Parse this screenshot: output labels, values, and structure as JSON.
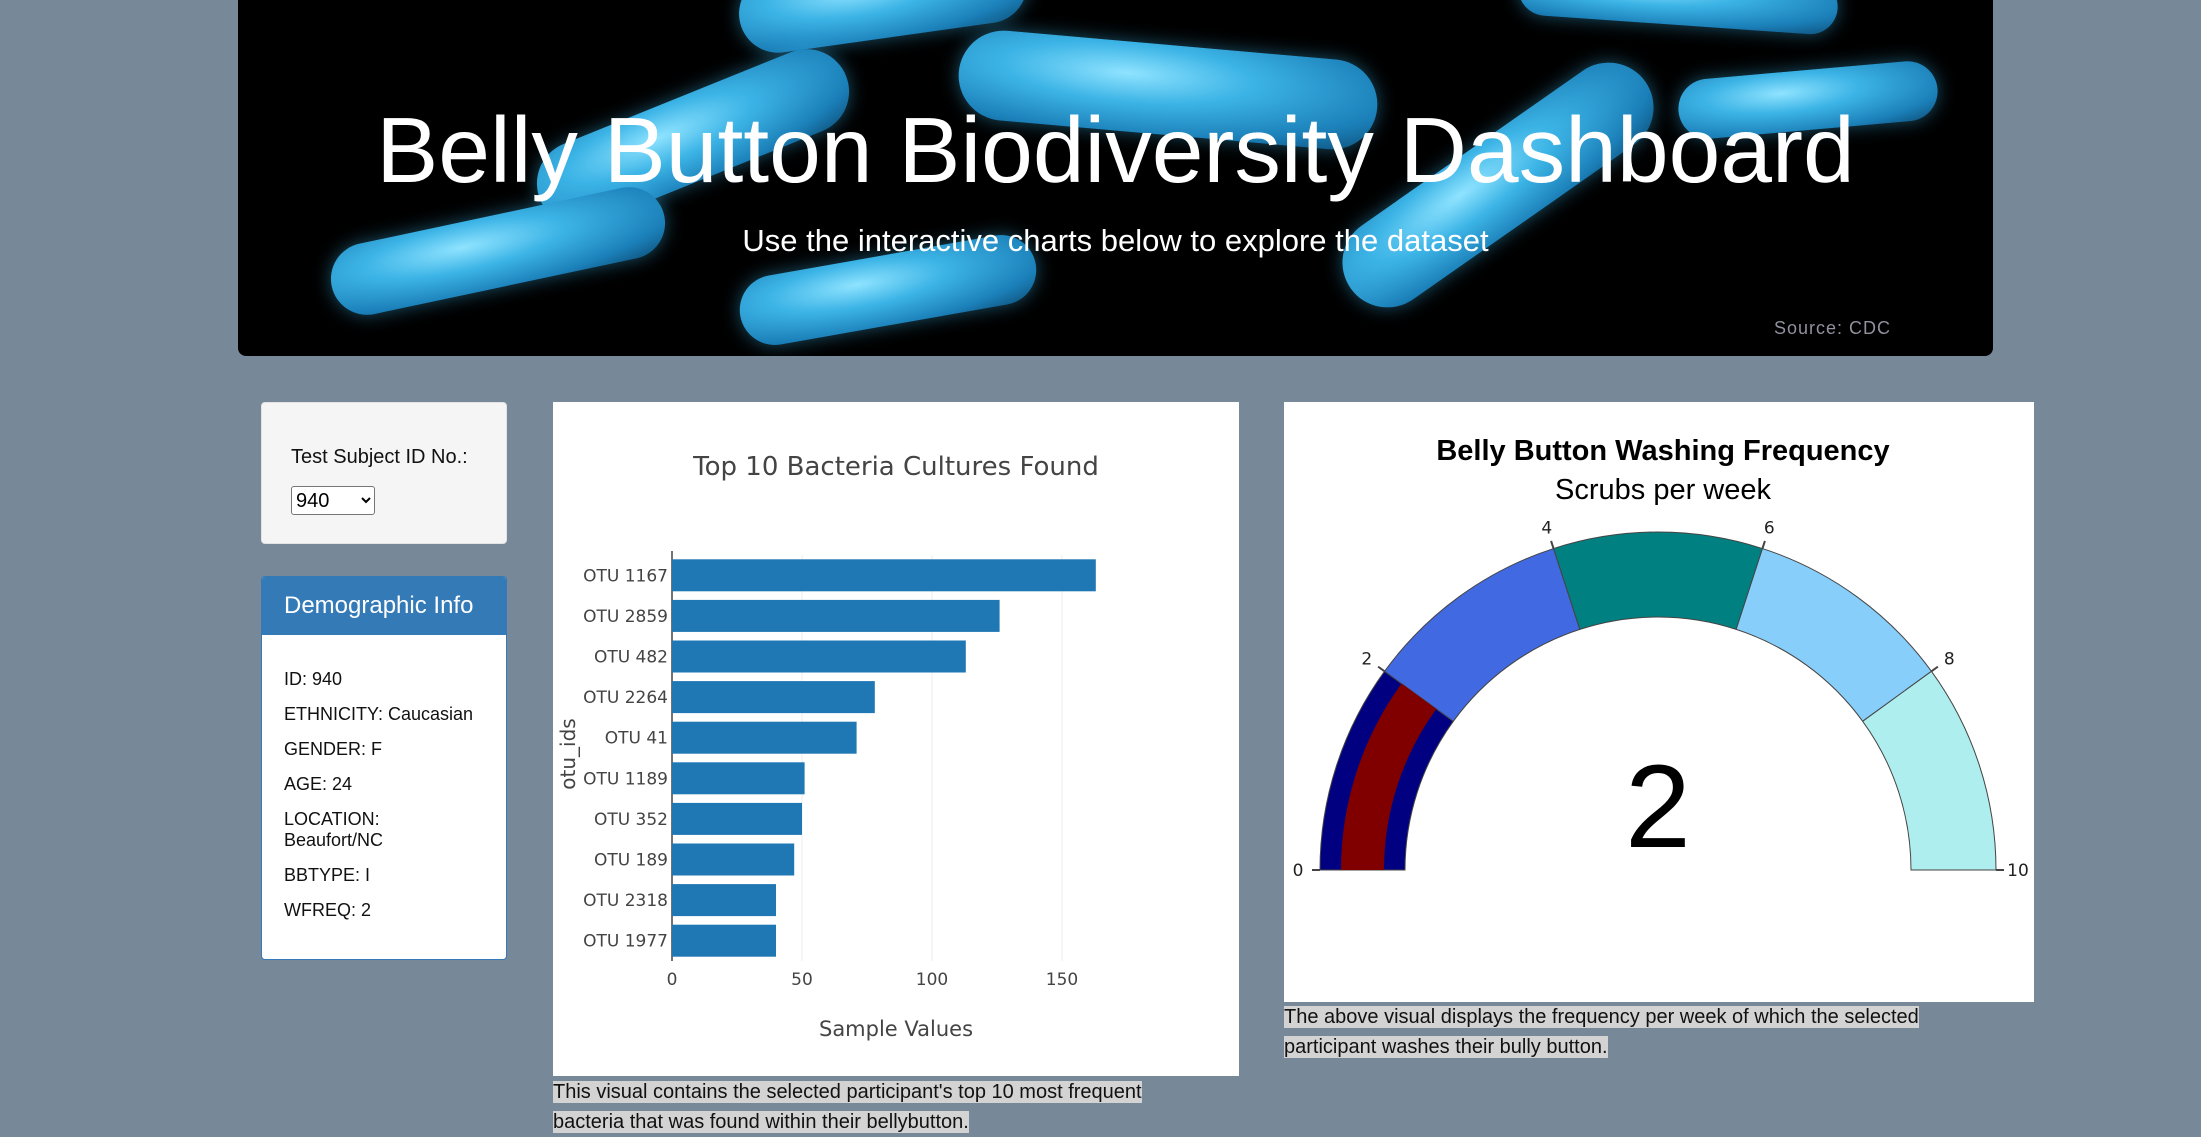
{
  "header": {
    "title": "Belly Button Biodiversity Dashboard",
    "subtitle": "Use the interactive charts below to explore the dataset",
    "source": "Source: CDC"
  },
  "selector": {
    "label": "Test Subject ID No.:",
    "selected": "940"
  },
  "demographics": {
    "heading": "Demographic Info",
    "items": [
      "ID: 940",
      "ETHNICITY: Caucasian",
      "GENDER: F",
      "AGE: 24",
      "LOCATION: Beaufort/NC",
      "BBTYPE: I",
      "WFREQ: 2"
    ]
  },
  "bar_caption": "This visual contains the selected participant's top 10 most frequent bacteria that was found within their bellybutton.",
  "gauge_caption": "The above visual displays the frequency per week of which the selected participant washes their bully button.",
  "colors": {
    "background": "#778899",
    "bar": "#1f77b4",
    "panel_header": "#337ab7"
  },
  "chart_data": [
    {
      "type": "bar",
      "orientation": "horizontal",
      "title": "Top 10 Bacteria Cultures Found",
      "xlabel": "Sample Values",
      "ylabel": "otu_ids",
      "categories": [
        "OTU 1167",
        "OTU 2859",
        "OTU 482",
        "OTU 2264",
        "OTU 41",
        "OTU 1189",
        "OTU 352",
        "OTU 189",
        "OTU 2318",
        "OTU 1977"
      ],
      "values": [
        163,
        126,
        113,
        78,
        71,
        51,
        50,
        47,
        40,
        40
      ],
      "xlim": [
        0,
        170
      ],
      "xticks": [
        0,
        50,
        100,
        150
      ],
      "grid": "vertical"
    },
    {
      "type": "gauge",
      "title": "Belly Button Washing Frequency",
      "subtitle": "Scrubs per week",
      "value": 2,
      "range": [
        0,
        10
      ],
      "ticks": [
        0,
        2,
        4,
        6,
        8,
        10
      ],
      "steps": [
        {
          "range": [
            0,
            2
          ],
          "color": "#000080"
        },
        {
          "range": [
            2,
            4
          ],
          "color": "#4169e1"
        },
        {
          "range": [
            4,
            6
          ],
          "color": "#008080"
        },
        {
          "range": [
            6,
            8
          ],
          "color": "#87cefa"
        },
        {
          "range": [
            8,
            10
          ],
          "color": "#afeeee"
        }
      ],
      "bar_color": "#800000"
    }
  ]
}
